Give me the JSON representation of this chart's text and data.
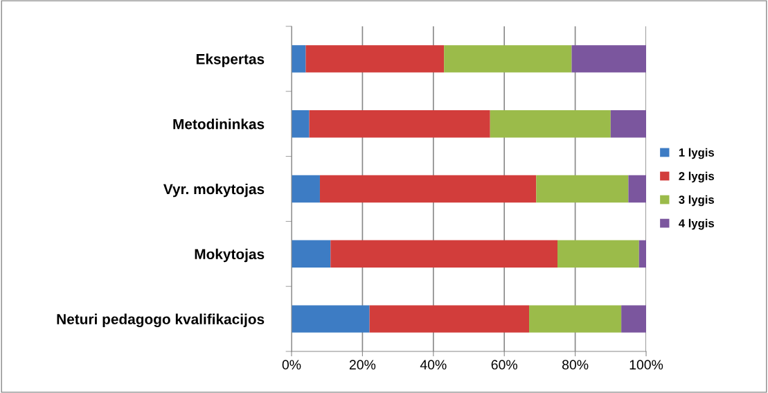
{
  "chart_data": {
    "type": "bar",
    "orientation": "horizontal",
    "stacked": true,
    "categories": [
      "Ekspertas",
      "Metodininkas",
      "Vyr. mokytojas",
      "Mokytojas",
      "Neturi pedagogo kvalifikacijos"
    ],
    "series": [
      {
        "name": "1 lygis",
        "color": "#3d7cc4",
        "values": [
          4,
          5,
          8,
          11,
          22
        ]
      },
      {
        "name": "2 lygis",
        "color": "#d23d3b",
        "values": [
          39,
          51,
          61,
          64,
          45
        ]
      },
      {
        "name": "3 lygis",
        "color": "#9bbb4a",
        "values": [
          36,
          34,
          26,
          23,
          26
        ]
      },
      {
        "name": "4 lygis",
        "color": "#7b569e",
        "values": [
          21,
          10,
          5,
          2,
          7
        ]
      }
    ],
    "xlim": [
      0,
      100
    ],
    "xticks": [
      {
        "value": 0,
        "label": "0%"
      },
      {
        "value": 20,
        "label": "20%"
      },
      {
        "value": 40,
        "label": "40%"
      },
      {
        "value": 60,
        "label": "60%"
      },
      {
        "value": 80,
        "label": "80%"
      },
      {
        "value": 100,
        "label": "100%"
      }
    ],
    "grid": "x",
    "legend": "right"
  }
}
